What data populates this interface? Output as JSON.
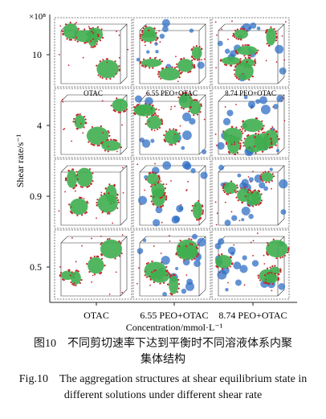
{
  "figure": {
    "exponent_label": "×10⁸",
    "y_axis_title": "Shear rate/s⁻¹",
    "x_axis_title": "Concentration/mmol·L⁻¹",
    "rows": [
      "10",
      "4",
      "0.9",
      "0.5"
    ],
    "columns": [
      "OTAC",
      "6.55 PEO+OTAC",
      "8.74 PEO+OTAC"
    ],
    "panel_labels": [
      "OTAC",
      "6.55 PEO+OTAC",
      "8.74 PEO+OTAC"
    ],
    "colors": {
      "micelle_core": "#3fae4f",
      "headgroup": "#c2272d",
      "peo_chain": "#2f6fc4",
      "box_line": "#333333"
    }
  },
  "caption": {
    "cn_line1": "图10　不同剪切速率下达到平衡时不同溶液体系内聚",
    "cn_line2": "集体结构",
    "en_line1": "Fig.10　The aggregation structures at shear equilibrium state in",
    "en_line2": "different solutions under different shear rate"
  }
}
